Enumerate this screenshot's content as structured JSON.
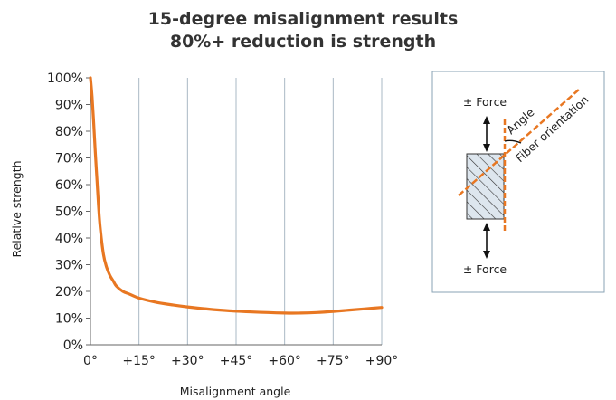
{
  "chart_data": {
    "type": "line",
    "title": [
      "15-degree misalignment results",
      "80%+ reduction is strength"
    ],
    "xlabel": "Misalignment angle",
    "ylabel": "Relative strength",
    "xlim": [
      0,
      90
    ],
    "ylim": [
      0,
      100
    ],
    "x_ticks": [
      {
        "value": 0,
        "label": "0°"
      },
      {
        "value": 15,
        "label": "+15°"
      },
      {
        "value": 30,
        "label": "+30°"
      },
      {
        "value": 45,
        "label": "+45°"
      },
      {
        "value": 60,
        "label": "+60°"
      },
      {
        "value": 75,
        "label": "+75°"
      },
      {
        "value": 90,
        "label": "+90°"
      }
    ],
    "y_ticks": [
      {
        "value": 0,
        "label": "0%"
      },
      {
        "value": 10,
        "label": "10%"
      },
      {
        "value": 20,
        "label": "20%"
      },
      {
        "value": 30,
        "label": "30%"
      },
      {
        "value": 40,
        "label": "40%"
      },
      {
        "value": 50,
        "label": "50%"
      },
      {
        "value": 60,
        "label": "60%"
      },
      {
        "value": 70,
        "label": "70%"
      },
      {
        "value": 80,
        "label": "80%"
      },
      {
        "value": 90,
        "label": "90%"
      },
      {
        "value": 100,
        "label": "100%"
      }
    ],
    "grid": "vertical",
    "series": [
      {
        "color": "#E87722",
        "x": [
          0,
          0.5,
          1,
          1.5,
          2,
          2.5,
          3,
          4,
          5,
          6,
          7,
          8,
          10,
          12,
          15,
          20,
          25,
          30,
          40,
          50,
          60,
          65,
          70,
          75,
          80,
          85,
          90
        ],
        "y": [
          100,
          93,
          83,
          72,
          62,
          52,
          44,
          34,
          29,
          26,
          24,
          22,
          20,
          19,
          17.5,
          16,
          15,
          14.2,
          13,
          12.3,
          11.9,
          11.9,
          12.1,
          12.5,
          13,
          13.5,
          14
        ]
      }
    ]
  },
  "diagram": {
    "force_top": "± Force",
    "force_bottom": "± Force",
    "angle_label": "Angle",
    "fiber_label": "Fiber orientation",
    "accent_color": "#E87722"
  }
}
